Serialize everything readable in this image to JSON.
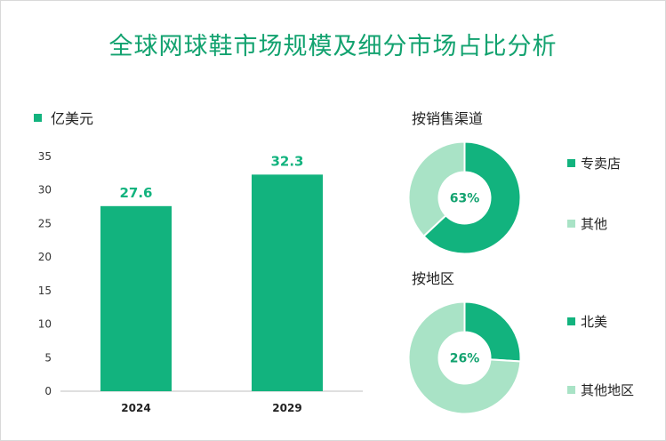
{
  "title": "全球网球鞋市场规模及细分市场占比分析",
  "colors": {
    "primary": "#12b37e",
    "light": "#a9e3c6",
    "title": "#12a26f"
  },
  "chart_data": [
    {
      "type": "bar",
      "legend": "亿美元",
      "categories": [
        "2024",
        "2029"
      ],
      "values": [
        27.6,
        32.3
      ],
      "data_labels": [
        "27.6",
        "32.3"
      ],
      "ylim": [
        0,
        35
      ],
      "yticks": [
        "0",
        "5",
        "10",
        "15",
        "20",
        "25",
        "30",
        "35"
      ],
      "grid": false
    },
    {
      "type": "pie",
      "title": "按销售渠道",
      "slices": [
        {
          "label": "专卖店",
          "value": 63
        },
        {
          "label": "其他",
          "value": 37
        }
      ],
      "center_label": "63%"
    },
    {
      "type": "pie",
      "title": "按地区",
      "slices": [
        {
          "label": "北美",
          "value": 26
        },
        {
          "label": "其他地区",
          "value": 74
        }
      ],
      "center_label": "26%"
    }
  ]
}
